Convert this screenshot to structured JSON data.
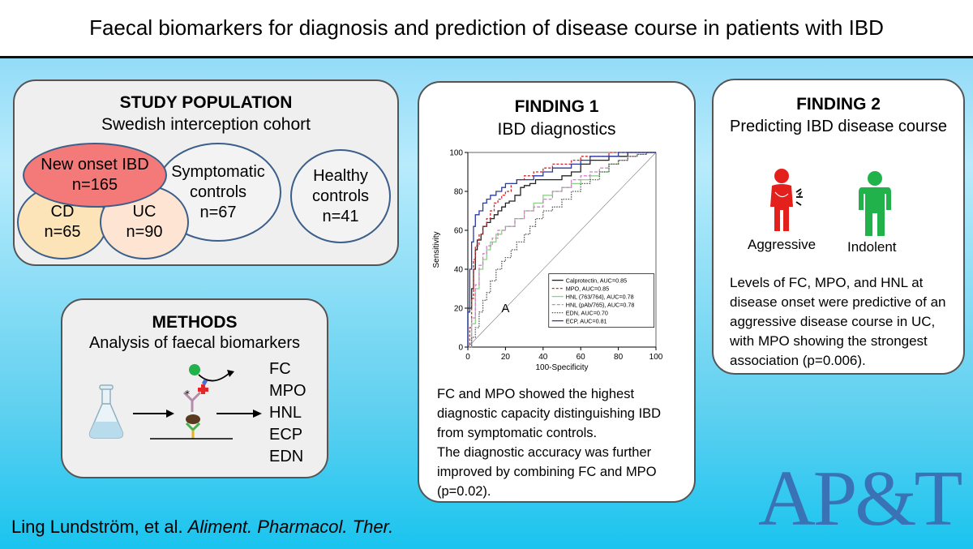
{
  "title": "Faecal biomarkers for diagnosis and prediction of disease course in patients with IBD",
  "study_population": {
    "heading": "STUDY POPULATION",
    "subheading": "Swedish interception cohort",
    "new_onset": {
      "label": "New onset IBD",
      "n": "n=165",
      "color": "#f47a7a"
    },
    "cd": {
      "label": "CD",
      "n": "n=65",
      "color": "#fde4b8"
    },
    "uc": {
      "label": "UC",
      "n": "n=90",
      "color": "#fde4d3"
    },
    "symptomatic": {
      "label_line1": "Symptomatic",
      "label_line2": "controls",
      "n": "n=67"
    },
    "healthy": {
      "label_line1": "Healthy",
      "label_line2": "controls",
      "n": "n=41"
    }
  },
  "methods": {
    "heading": "METHODS",
    "subheading": "Analysis of faecal biomarkers",
    "markers": [
      "FC",
      "MPO",
      "HNL",
      "ECP",
      "EDN"
    ]
  },
  "finding1": {
    "heading": "FINDING 1",
    "subheading": "IBD diagnostics",
    "text_line1": "FC and MPO showed the highest diagnostic capacity distinguishing IBD from symptomatic controls.",
    "text_line2": "The diagnostic accuracy was further improved by combining FC and MPO (p=0.02)."
  },
  "finding2": {
    "heading": "FINDING 2",
    "subheading": "Predicting IBD disease course",
    "aggressive_label": "Aggressive",
    "indolent_label": "Indolent",
    "aggressive_color": "#e4201c",
    "indolent_color": "#21b24b",
    "text": "Levels of FC, MPO, and HNL at disease onset were predictive of an aggressive disease course in UC, with MPO showing the strongest association (p=0.006)."
  },
  "citation": {
    "authors": "Ling Lundström, et al. ",
    "journal": "Aliment. Pharmacol. Ther."
  },
  "logo_text": "AP&T",
  "chart_data": {
    "type": "line",
    "panel_label": "A",
    "xlabel": "100-Specificity",
    "ylabel": "Sensitivity",
    "xlim": [
      0,
      100
    ],
    "ylim": [
      0,
      100
    ],
    "x_ticks": [
      "0",
      "20",
      "40",
      "60",
      "80",
      "100"
    ],
    "y_ticks": [
      "0",
      "20",
      "40",
      "60",
      "80",
      "100"
    ],
    "series": [
      {
        "name": "Calprotectin, AUC=0.85",
        "color": "#222222",
        "dash": "solid",
        "x": [
          0,
          0,
          2,
          3,
          4,
          5,
          7,
          8,
          10,
          12,
          14,
          16,
          18,
          20,
          22,
          25,
          28,
          30,
          33,
          36,
          40,
          45,
          50,
          55,
          60,
          65,
          70,
          75,
          80,
          85,
          90,
          95,
          100
        ],
        "y": [
          0,
          20,
          30,
          40,
          50,
          55,
          58,
          62,
          64,
          66,
          68,
          70,
          72,
          74,
          75,
          78,
          82,
          83,
          84,
          86,
          86,
          86,
          88,
          90,
          94,
          96,
          96,
          98,
          98,
          100,
          100,
          100,
          100
        ]
      },
      {
        "name": "MPO, AUC=0.85",
        "color": "#d0262b",
        "dash": "3,2",
        "x": [
          0,
          1,
          2,
          3,
          4,
          6,
          8,
          10,
          12,
          14,
          16,
          18,
          20,
          23,
          26,
          30,
          35,
          40,
          45,
          50,
          55,
          60,
          65,
          70,
          75,
          80,
          85,
          90,
          95,
          100
        ],
        "y": [
          0,
          10,
          25,
          45,
          52,
          58,
          62,
          66,
          70,
          74,
          76,
          78,
          80,
          84,
          86,
          88,
          90,
          92,
          94,
          94,
          96,
          98,
          98,
          98,
          100,
          100,
          100,
          100,
          100,
          100
        ]
      },
      {
        "name": "HNL (763/764), AUC=0.78",
        "color": "#8ed08a",
        "dash": "solid",
        "x": [
          0,
          2,
          4,
          6,
          8,
          10,
          12,
          15,
          18,
          20,
          25,
          30,
          35,
          40,
          45,
          50,
          55,
          60,
          65,
          70,
          75,
          80,
          85,
          90,
          95,
          100
        ],
        "y": [
          0,
          12,
          30,
          40,
          45,
          50,
          54,
          58,
          60,
          62,
          66,
          70,
          74,
          78,
          80,
          82,
          84,
          86,
          88,
          90,
          94,
          96,
          98,
          99,
          100,
          100
        ]
      },
      {
        "name": "HNL (pAb/765), AUC=0.78",
        "color": "#d080c8",
        "dash": "4,2",
        "x": [
          0,
          2,
          4,
          6,
          8,
          10,
          13,
          16,
          20,
          25,
          30,
          35,
          40,
          45,
          50,
          55,
          60,
          65,
          70,
          75,
          80,
          85,
          90,
          95,
          100
        ],
        "y": [
          0,
          15,
          32,
          42,
          48,
          52,
          56,
          60,
          62,
          66,
          70,
          72,
          76,
          80,
          82,
          86,
          88,
          90,
          92,
          94,
          96,
          98,
          99,
          100,
          100
        ]
      },
      {
        "name": "EDN, AUC=0.70",
        "color": "#555555",
        "dash": "1.5,1.5",
        "x": [
          0,
          2,
          4,
          6,
          8,
          10,
          12,
          15,
          18,
          20,
          23,
          26,
          30,
          33,
          36,
          40,
          45,
          50,
          55,
          60,
          65,
          70,
          75,
          80,
          85,
          90,
          95,
          100
        ],
        "y": [
          0,
          5,
          10,
          18,
          24,
          28,
          34,
          40,
          44,
          46,
          50,
          54,
          58,
          62,
          66,
          70,
          72,
          76,
          80,
          84,
          86,
          90,
          94,
          96,
          98,
          99,
          100,
          100
        ]
      },
      {
        "name": "ECP, AUC=0.81",
        "color": "#2a3b9e",
        "dash": "solid",
        "x": [
          0,
          0,
          1,
          2,
          3,
          4,
          6,
          8,
          10,
          12,
          15,
          18,
          20,
          23,
          26,
          30,
          35,
          40,
          45,
          50,
          55,
          60,
          65,
          70,
          75,
          80,
          85,
          90,
          95,
          100
        ],
        "y": [
          0,
          18,
          40,
          54,
          62,
          68,
          70,
          74,
          76,
          78,
          80,
          82,
          84,
          84,
          86,
          86,
          88,
          90,
          92,
          92,
          94,
          96,
          98,
          98,
          98,
          100,
          100,
          100,
          100,
          100
        ]
      }
    ]
  }
}
